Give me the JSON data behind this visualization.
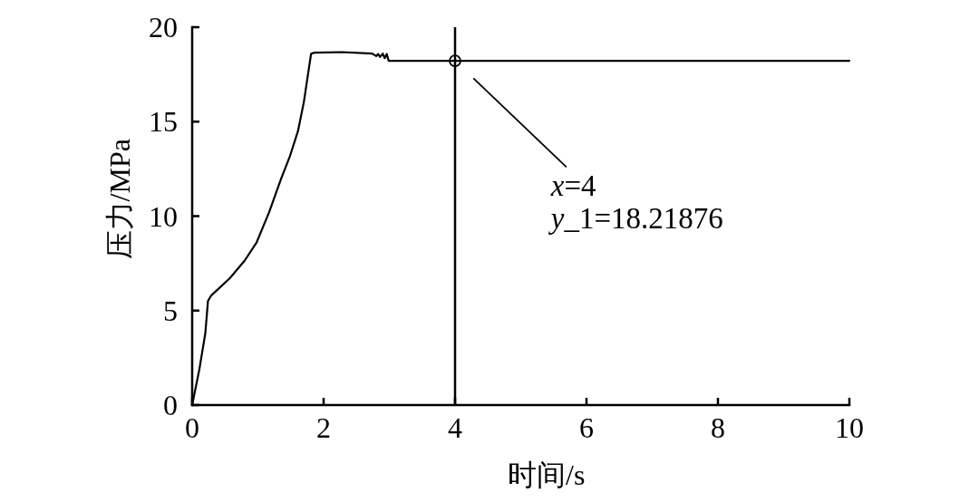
{
  "chart_data": {
    "type": "line",
    "xlabel": "时间/s",
    "ylabel": "压力/MPa",
    "xlim": [
      0,
      10
    ],
    "ylim": [
      0,
      20
    ],
    "xticks": [
      0,
      2,
      4,
      6,
      8,
      10
    ],
    "yticks": [
      0,
      5,
      10,
      15,
      20
    ],
    "grid": false,
    "series": [
      {
        "color": "#000000",
        "x": [
          0,
          0.11,
          0.2,
          0.24,
          0.29,
          0.57,
          0.8,
          0.98,
          1.17,
          1.35,
          1.49,
          1.61,
          1.7,
          1.76,
          1.81,
          1.86,
          2.28,
          2.74,
          2.8,
          2.83,
          2.86,
          2.9,
          2.93,
          2.96,
          2.99,
          3.04,
          10
        ],
        "values": [
          0,
          1.9,
          3.8,
          5.5,
          5.8,
          6.7,
          7.65,
          8.6,
          10.2,
          11.95,
          13.2,
          14.5,
          16.05,
          17.45,
          18.6,
          18.65,
          18.68,
          18.6,
          18.47,
          18.58,
          18.42,
          18.6,
          18.36,
          18.58,
          18.22,
          18.22,
          18.22
        ]
      },
      {
        "type": "scatter",
        "color": "#000000",
        "x": [
          4
        ],
        "values": [
          18.22
        ]
      }
    ],
    "ref_lines": [
      {
        "axis": "x",
        "value": 4,
        "color": "#000000"
      }
    ],
    "annotations": [
      "x=4\ny_1=18.21876"
    ]
  }
}
